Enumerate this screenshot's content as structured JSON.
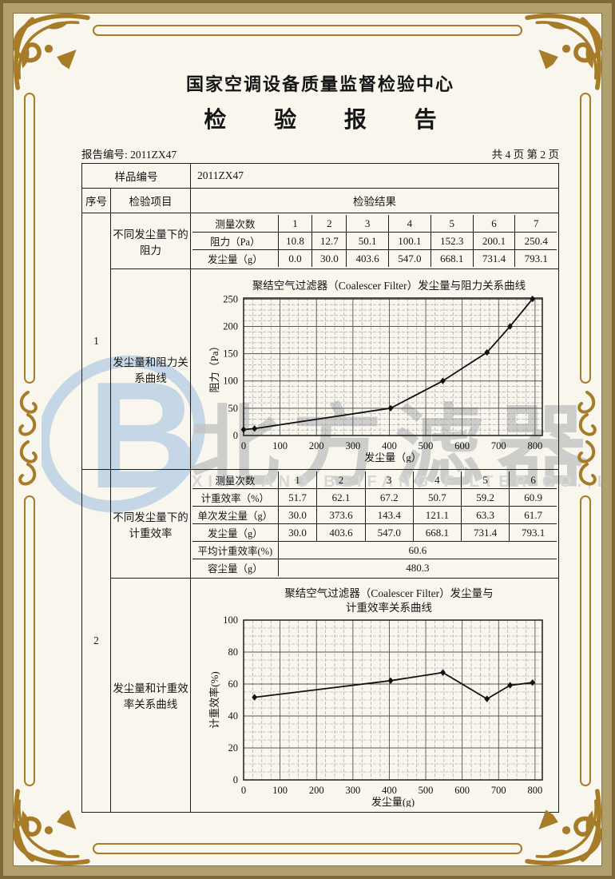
{
  "colors": {
    "frame_gold": "#a67c28",
    "band_tan": "#b2a06c",
    "band_dark": "#7e6738",
    "paper": "#f9f6ee",
    "watermark_blue": "#b9cfe4",
    "watermark_gray": "#c3c3c3"
  },
  "header": {
    "org": "国家空调设备质量监督检验中心",
    "title": "检 验 报 告",
    "report_no_label": "报告编号:",
    "report_no": "2011ZX47",
    "page_info": "共 4 页 第 2 页"
  },
  "sample_row": {
    "label": "样品编号",
    "value": "2011ZX47"
  },
  "columns": {
    "seq": "序号",
    "item": "检验项目",
    "result": "检验结果"
  },
  "sections": [
    {
      "seq": "1",
      "rows_label": "不同发尘量下的阻力",
      "chart_label": "发尘量和阻力关系曲线",
      "table": {
        "rows": [
          {
            "label": "测量次数",
            "values": [
              "1",
              "2",
              "3",
              "4",
              "5",
              "6",
              "7"
            ]
          },
          {
            "label": "阻力（Pa）",
            "values": [
              "10.8",
              "12.7",
              "50.1",
              "100.1",
              "152.3",
              "200.1",
              "250.4"
            ]
          },
          {
            "label": "发尘量（g）",
            "values": [
              "0.0",
              "30.0",
              "403.6",
              "547.0",
              "668.1",
              "731.4",
              "793.1"
            ]
          }
        ]
      }
    },
    {
      "seq": "2",
      "rows_label": "不同发尘量下的计重效率",
      "chart_label": "发尘量和计重效率关系曲线",
      "table": {
        "rows": [
          {
            "label": "测量次数",
            "values": [
              "1",
              "2",
              "3",
              "4",
              "5",
              "6"
            ]
          },
          {
            "label": "计重效率（%）",
            "values": [
              "51.7",
              "62.1",
              "67.2",
              "50.7",
              "59.2",
              "60.9"
            ]
          },
          {
            "label": "单次发尘量（g）",
            "values": [
              "30.0",
              "373.6",
              "143.4",
              "121.1",
              "63.3",
              "61.7"
            ]
          },
          {
            "label": "发尘量（g）",
            "values": [
              "30.0",
              "403.6",
              "547.0",
              "668.1",
              "731.4",
              "793.1"
            ]
          },
          {
            "label": "平均计重效率(%)",
            "values": [
              "60.6"
            ],
            "span": 6
          },
          {
            "label": "容尘量（g）",
            "values": [
              "480.3"
            ],
            "span": 6
          }
        ]
      }
    }
  ],
  "watermark": {
    "cjk": "北方滤器",
    "en": "XINXIANG BEIFANG FILTER CO.,LTD",
    "logo_letter": "B"
  },
  "chart_data": [
    {
      "type": "line",
      "title_lines": [
        "聚结空气过滤器（Coalescer Filter）发尘量与阻力关系曲线"
      ],
      "xlabel": "发尘量（g）",
      "ylabel": "阻力（Pa）",
      "x": [
        0,
        30,
        403.6,
        547,
        668.1,
        731.4,
        793.1
      ],
      "y": [
        10.8,
        12.7,
        50.1,
        100.1,
        152.3,
        200.1,
        250.4
      ],
      "xlim": [
        0,
        820
      ],
      "ylim": [
        0,
        252
      ],
      "x_ticks": [
        0,
        100,
        200,
        300,
        400,
        500,
        600,
        700,
        800
      ],
      "y_ticks": [
        0,
        50,
        100,
        150,
        200,
        250
      ],
      "x_minor": 25,
      "y_minor": 10,
      "grid": true,
      "legend": "none"
    },
    {
      "type": "line",
      "title_lines": [
        "聚结空气过滤器（Coalescer Filter）发尘量与",
        "计重效率关系曲线"
      ],
      "xlabel": "发尘量(g)",
      "ylabel": "计重效率(%)",
      "x": [
        30,
        403.6,
        547,
        668.1,
        731.4,
        793.1
      ],
      "y": [
        51.7,
        62.1,
        67.2,
        50.7,
        59.2,
        60.9
      ],
      "xlim": [
        0,
        820
      ],
      "ylim": [
        0,
        100
      ],
      "x_ticks": [
        0,
        100,
        200,
        300,
        400,
        500,
        600,
        700,
        800
      ],
      "y_ticks": [
        0,
        20,
        40,
        60,
        80,
        100
      ],
      "x_minor": 25,
      "y_minor": 5,
      "grid": true,
      "legend": "none"
    }
  ]
}
